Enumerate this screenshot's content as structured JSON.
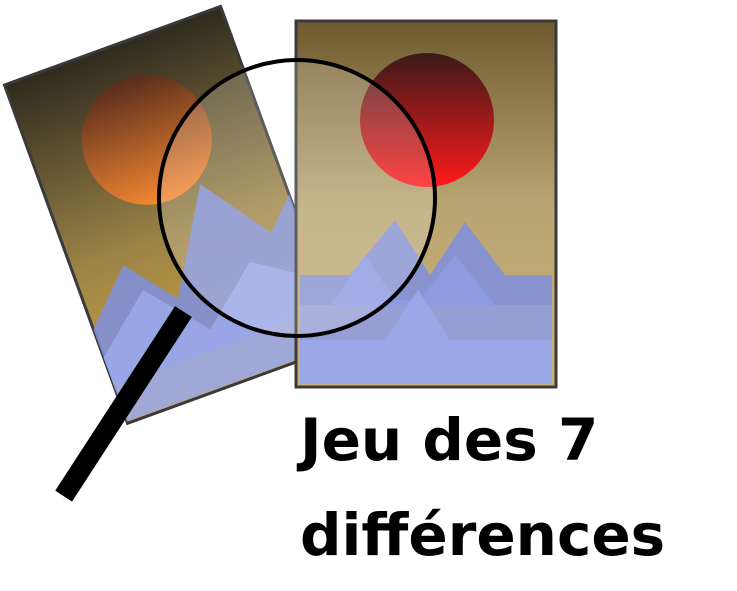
{
  "title": {
    "line1": "Jeu des 7",
    "line2": "différences"
  },
  "colors": {
    "frame_stroke": "#3a3a3a",
    "sky_top": "#6f5a2e",
    "sky_bottom": "#d6c08a",
    "left_sky_top": "#2f2a1e",
    "left_sky_bottom": "#d4a43a",
    "sun_left_top": "#5a2a1a",
    "sun_left_bottom": "#ff8a30",
    "sun_right_top": "#3b1a1a",
    "sun_right_bottom": "#ff1a1a",
    "mountain_back": "#7f8fe0",
    "mountain_front": "#9aa8e8",
    "magnifier_ring": "#000000",
    "text": "#000000"
  },
  "icons": [
    "magnifying-glass-icon"
  ]
}
